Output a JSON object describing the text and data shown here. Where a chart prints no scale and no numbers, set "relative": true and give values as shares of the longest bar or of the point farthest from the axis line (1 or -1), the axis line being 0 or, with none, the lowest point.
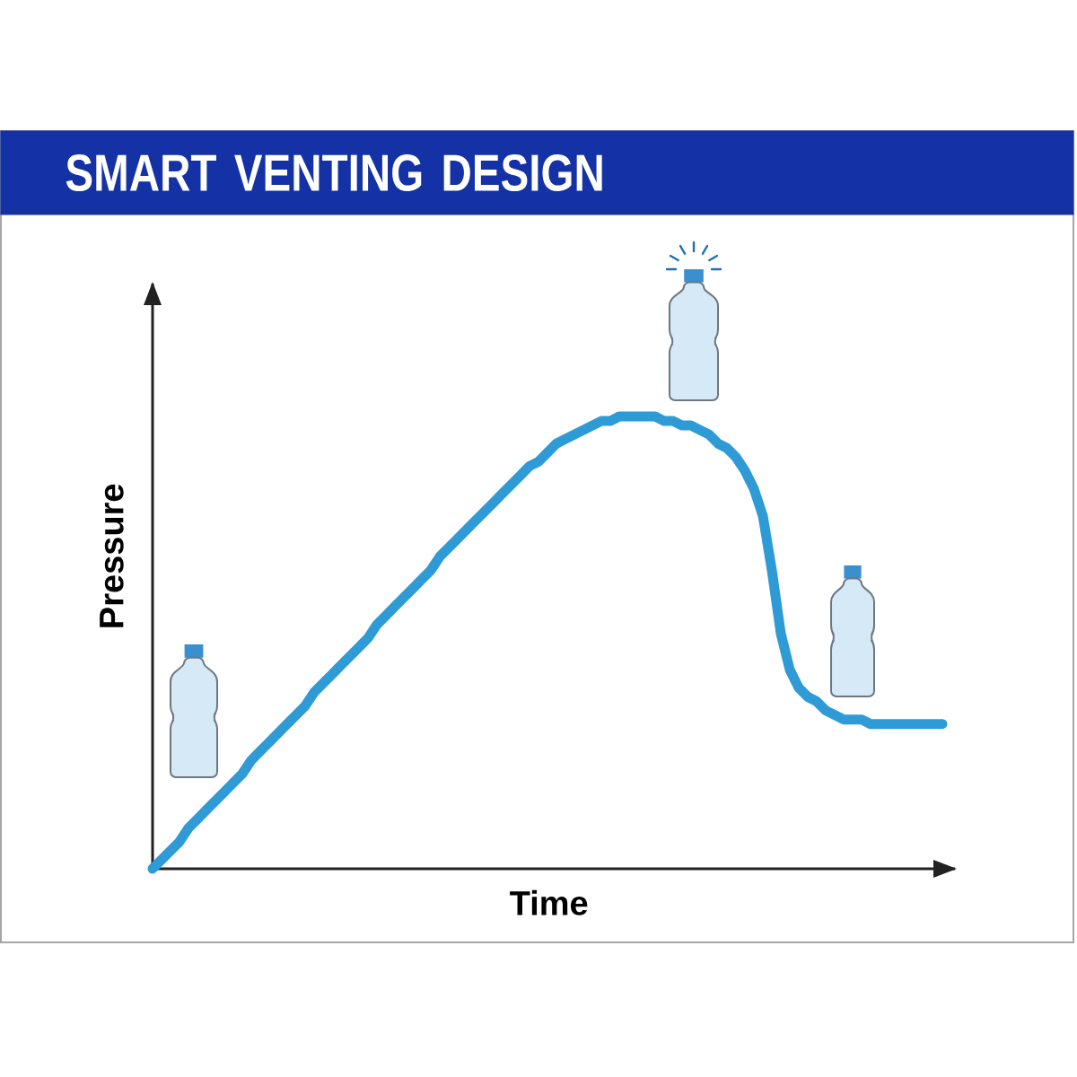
{
  "chart_data": {
    "type": "line",
    "title": "SMART VENTING DESIGN",
    "xlabel": "Time",
    "ylabel": "Pressure",
    "relative": true,
    "categories": [
      null,
      null,
      null,
      null,
      null,
      null,
      null,
      null,
      null,
      null,
      null,
      null,
      null,
      null,
      null,
      null,
      null,
      null,
      null,
      null,
      null,
      null,
      null,
      null,
      null,
      null,
      null,
      null,
      null,
      null,
      null,
      null,
      null,
      null,
      null,
      null,
      null,
      null,
      null,
      null,
      null,
      null,
      null,
      null,
      null,
      null,
      null,
      null,
      null,
      null,
      null,
      null,
      null,
      null,
      null,
      null,
      null,
      null,
      null,
      null,
      null,
      null,
      null,
      null,
      null,
      null,
      null,
      null,
      null,
      null,
      null,
      null,
      null,
      null,
      null,
      null,
      null,
      null,
      null,
      null,
      null,
      null,
      null,
      null,
      null,
      null,
      null,
      null,
      null
    ],
    "color": "#2e9bd6",
    "values": [
      0.0,
      0.02,
      0.04,
      0.06,
      0.09,
      0.11,
      0.13,
      0.15,
      0.17,
      0.19,
      0.21,
      0.24,
      0.26,
      0.28,
      0.3,
      0.32,
      0.34,
      0.36,
      0.39,
      0.41,
      0.43,
      0.45,
      0.47,
      0.49,
      0.51,
      0.54,
      0.56,
      0.58,
      0.6,
      0.62,
      0.64,
      0.66,
      0.69,
      0.71,
      0.73,
      0.75,
      0.77,
      0.79,
      0.81,
      0.83,
      0.85,
      0.87,
      0.89,
      0.9,
      0.92,
      0.94,
      0.95,
      0.96,
      0.97,
      0.98,
      0.99,
      0.99,
      1.0,
      1.0,
      1.0,
      1.0,
      1.0,
      0.99,
      0.99,
      0.98,
      0.98,
      0.97,
      0.96,
      0.94,
      0.93,
      0.91,
      0.88,
      0.84,
      0.78,
      0.66,
      0.52,
      0.44,
      0.4,
      0.38,
      0.37,
      0.35,
      0.34,
      0.33,
      0.33,
      0.33,
      0.32,
      0.32,
      0.32,
      0.32,
      0.32,
      0.32,
      0.32,
      0.32,
      0.32
    ]
  }
}
